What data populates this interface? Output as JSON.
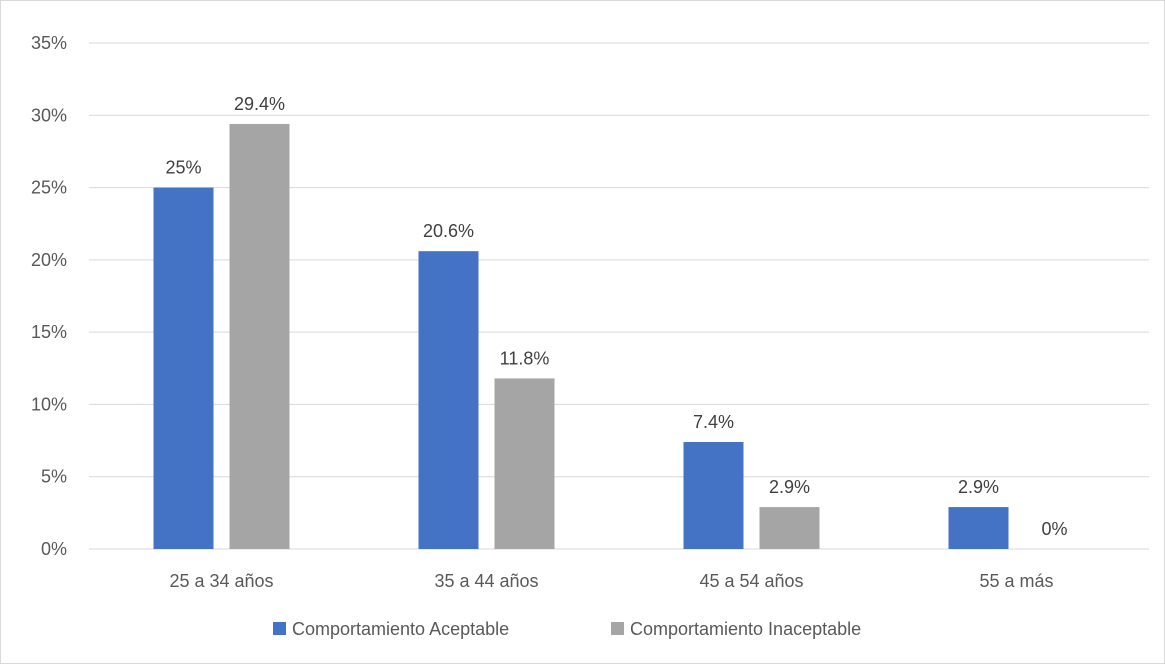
{
  "chart_data": {
    "type": "bar",
    "title": "",
    "xlabel": "",
    "ylabel": "",
    "ylim": [
      0,
      35
    ],
    "y_ticks": [
      0,
      5,
      10,
      15,
      20,
      25,
      30,
      35
    ],
    "y_tick_labels": [
      "0%",
      "5%",
      "10%",
      "15%",
      "20%",
      "25%",
      "30%",
      "35%"
    ],
    "grid": true,
    "legend_position": "bottom",
    "categories": [
      "25 a 34 años",
      "35 a 44 años",
      "45 a 54 años",
      "55 a más"
    ],
    "series": [
      {
        "name": "Comportamiento Aceptable",
        "color": "#4472c4",
        "values": [
          25,
          20.6,
          7.4,
          2.9
        ],
        "labels": [
          "25%",
          "20.6%",
          "7.4%",
          "2.9%"
        ]
      },
      {
        "name": "Comportamiento Inaceptable",
        "color": "#a5a5a5",
        "values": [
          29.4,
          11.8,
          2.9,
          0
        ],
        "labels": [
          "29.4%",
          "11.8%",
          "2.9%",
          "0%"
        ]
      }
    ]
  }
}
